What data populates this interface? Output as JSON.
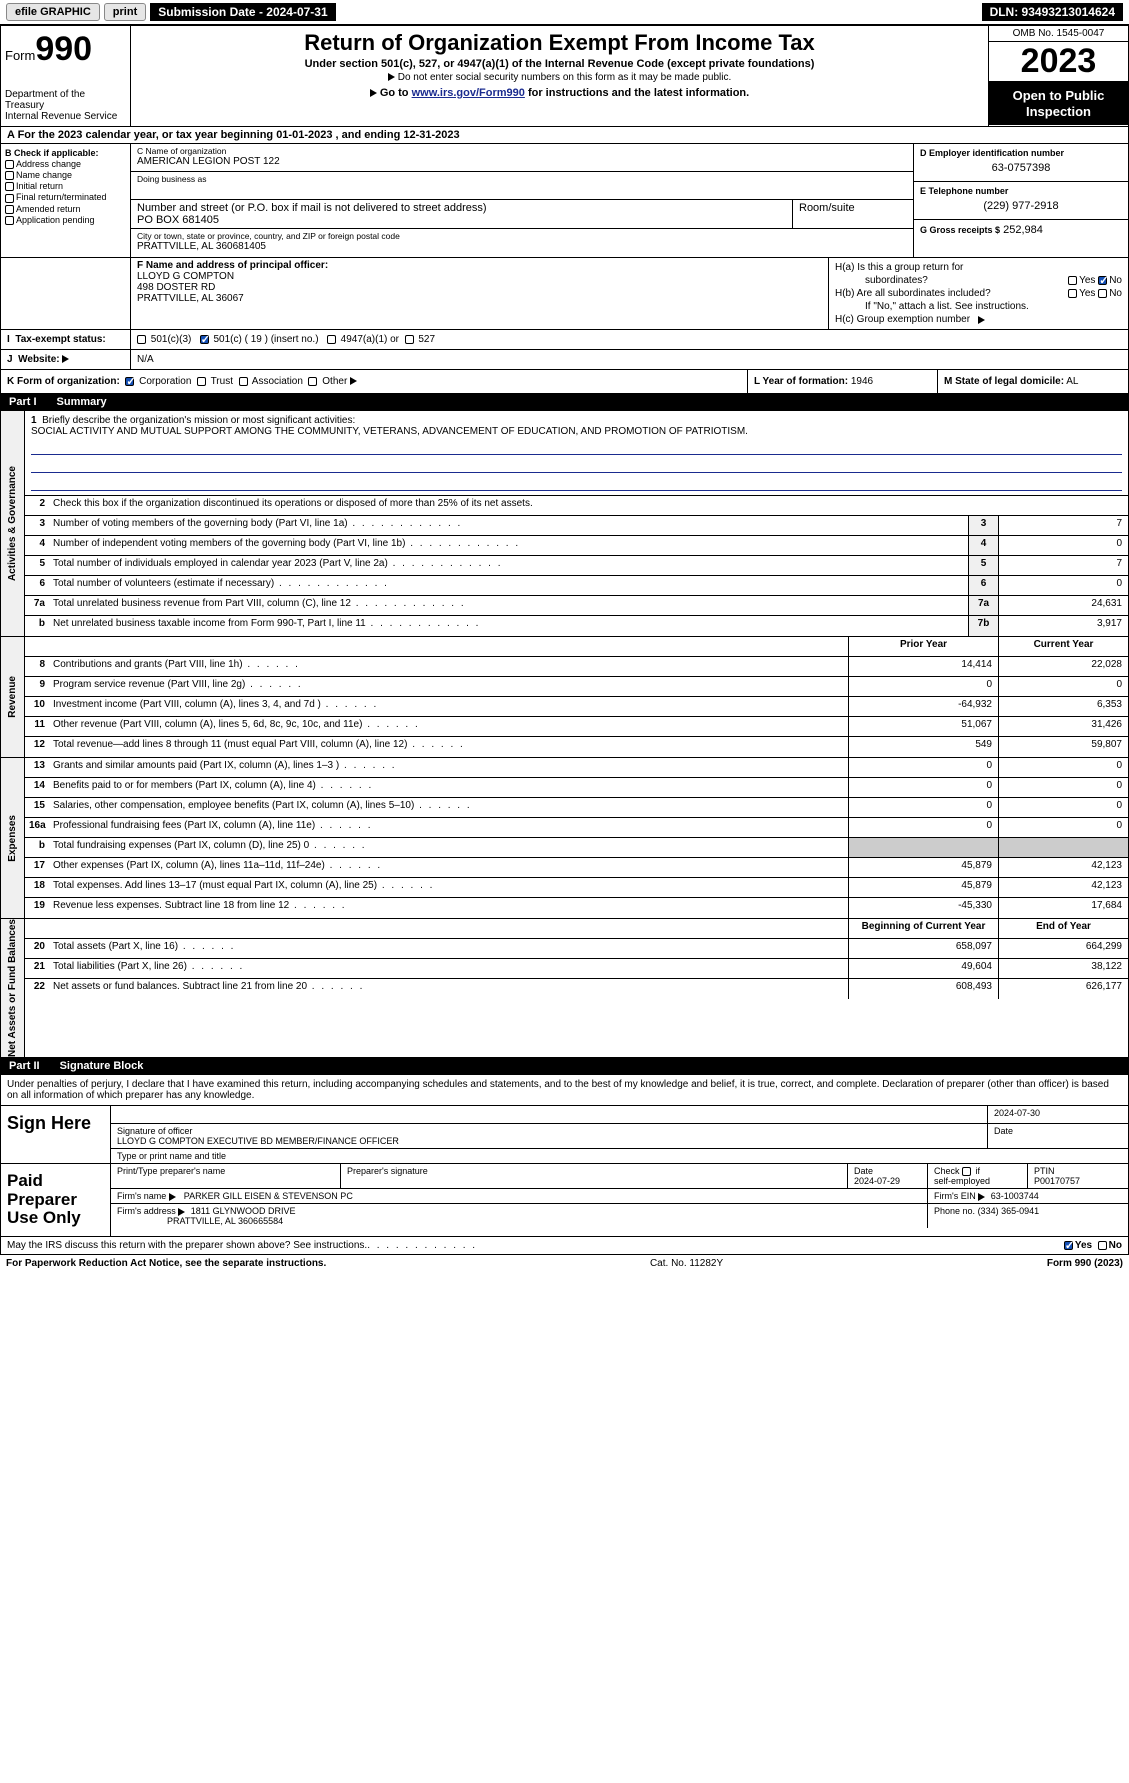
{
  "topbar": {
    "efile": "efile GRAPHIC",
    "print": "print",
    "submission": "Submission Date - 2024-07-31",
    "dln": "DLN: 93493213014624"
  },
  "header": {
    "form_label": "Form",
    "form_num": "990",
    "dept": "Department of the Treasury",
    "irs": "Internal Revenue Service",
    "title": "Return of Organization Exempt From Income Tax",
    "sub1": "Under section 501(c), 527, or 4947(a)(1) of the Internal Revenue Code (except private foundations)",
    "sub2": "Do not enter social security numbers on this form as it may be made public.",
    "goto_pre": "Go to ",
    "goto_link": "www.irs.gov/Form990",
    "goto_post": " for instructions and the latest information.",
    "omb": "OMB No. 1545-0047",
    "year": "2023",
    "open": "Open to Public Inspection"
  },
  "rowA": "A  For the 2023 calendar year, or tax year beginning 01-01-2023   , and ending 12-31-2023",
  "colB": {
    "title": "B Check if applicable:",
    "items": [
      "Address change",
      "Name change",
      "Initial return",
      "Final return/terminated",
      "Amended return",
      "Application pending"
    ]
  },
  "colC": {
    "name_lbl": "C Name of organization",
    "name": "AMERICAN LEGION POST 122",
    "dba_lbl": "Doing business as",
    "dba": "",
    "street_lbl": "Number and street (or P.O. box if mail is not delivered to street address)",
    "street": "PO BOX 681405",
    "room_lbl": "Room/suite",
    "room": "",
    "city_lbl": "City or town, state or province, country, and ZIP or foreign postal code",
    "city": "PRATTVILLE, AL  360681405"
  },
  "colD": {
    "ein_lbl": "D Employer identification number",
    "ein": "63-0757398",
    "tel_lbl": "E Telephone number",
    "tel": "(229) 977-2918",
    "gross_lbl": "G Gross receipts $",
    "gross": "252,984"
  },
  "rowF": {
    "lbl": "F Name and address of principal officer:",
    "name": "LLOYD G COMPTON",
    "addr1": "498 DOSTER RD",
    "addr2": "PRATTVILLE, AL  36067"
  },
  "rowH": {
    "a": "H(a)  Is this a group return for",
    "a2": "subordinates?",
    "b": "H(b)  Are all subordinates included?",
    "b2": "If \"No,\" attach a list. See instructions.",
    "c": "H(c)  Group exemption number",
    "yes": "Yes",
    "no": "No"
  },
  "rowI": {
    "lbl": "Tax-exempt status:",
    "opts": [
      "501(c)(3)",
      "501(c) ( 19 ) (insert no.)",
      "4947(a)(1) or",
      "527"
    ]
  },
  "rowJ": {
    "lbl": "Website:",
    "val": "N/A"
  },
  "rowK": {
    "lbl": "K Form of organization:",
    "opts": [
      "Corporation",
      "Trust",
      "Association",
      "Other"
    ]
  },
  "rowL": {
    "lbl": "L Year of formation:",
    "val": "1946"
  },
  "rowM": {
    "lbl": "M State of legal domicile:",
    "val": "AL"
  },
  "part1": {
    "pn": "Part I",
    "title": "Summary"
  },
  "mission": {
    "lbl": "Briefly describe the organization's mission or most significant activities:",
    "text": "SOCIAL ACTIVITY AND MUTUAL SUPPORT AMONG THE COMMUNITY, VETERANS, ADVANCEMENT OF EDUCATION, AND PROMOTION OF PATRIOTISM."
  },
  "vtabs": {
    "ag": "Activities & Governance",
    "rev": "Revenue",
    "exp": "Expenses",
    "na": "Net Assets or Fund Balances"
  },
  "line2": "Check this box      if the organization discontinued its operations or disposed of more than 25% of its net assets.",
  "lines_ag": [
    {
      "n": "3",
      "d": "Number of voting members of the governing body (Part VI, line 1a)",
      "b": "3",
      "v": "7"
    },
    {
      "n": "4",
      "d": "Number of independent voting members of the governing body (Part VI, line 1b)",
      "b": "4",
      "v": "0"
    },
    {
      "n": "5",
      "d": "Total number of individuals employed in calendar year 2023 (Part V, line 2a)",
      "b": "5",
      "v": "7"
    },
    {
      "n": "6",
      "d": "Total number of volunteers (estimate if necessary)",
      "b": "6",
      "v": "0"
    },
    {
      "n": "7a",
      "d": "Total unrelated business revenue from Part VIII, column (C), line 12",
      "b": "7a",
      "v": "24,631"
    },
    {
      "n": "b",
      "d": "Net unrelated business taxable income from Form 990-T, Part I, line 11",
      "b": "7b",
      "v": "3,917"
    }
  ],
  "hdr_py": "Prior Year",
  "hdr_cy": "Current Year",
  "lines_rev": [
    {
      "n": "8",
      "d": "Contributions and grants (Part VIII, line 1h)",
      "p": "14,414",
      "c": "22,028"
    },
    {
      "n": "9",
      "d": "Program service revenue (Part VIII, line 2g)",
      "p": "0",
      "c": "0"
    },
    {
      "n": "10",
      "d": "Investment income (Part VIII, column (A), lines 3, 4, and 7d )",
      "p": "-64,932",
      "c": "6,353"
    },
    {
      "n": "11",
      "d": "Other revenue (Part VIII, column (A), lines 5, 6d, 8c, 9c, 10c, and 11e)",
      "p": "51,067",
      "c": "31,426"
    },
    {
      "n": "12",
      "d": "Total revenue—add lines 8 through 11 (must equal Part VIII, column (A), line 12)",
      "p": "549",
      "c": "59,807"
    }
  ],
  "lines_exp": [
    {
      "n": "13",
      "d": "Grants and similar amounts paid (Part IX, column (A), lines 1–3 )",
      "p": "0",
      "c": "0"
    },
    {
      "n": "14",
      "d": "Benefits paid to or for members (Part IX, column (A), line 4)",
      "p": "0",
      "c": "0"
    },
    {
      "n": "15",
      "d": "Salaries, other compensation, employee benefits (Part IX, column (A), lines 5–10)",
      "p": "0",
      "c": "0"
    },
    {
      "n": "16a",
      "d": "Professional fundraising fees (Part IX, column (A), line 11e)",
      "p": "0",
      "c": "0"
    },
    {
      "n": "b",
      "d": "Total fundraising expenses (Part IX, column (D), line 25) 0",
      "p": "",
      "c": "",
      "gray": true
    },
    {
      "n": "17",
      "d": "Other expenses (Part IX, column (A), lines 11a–11d, 11f–24e)",
      "p": "45,879",
      "c": "42,123"
    },
    {
      "n": "18",
      "d": "Total expenses. Add lines 13–17 (must equal Part IX, column (A), line 25)",
      "p": "45,879",
      "c": "42,123"
    },
    {
      "n": "19",
      "d": "Revenue less expenses. Subtract line 18 from line 12",
      "p": "-45,330",
      "c": "17,684"
    }
  ],
  "hdr_boy": "Beginning of Current Year",
  "hdr_eoy": "End of Year",
  "lines_na": [
    {
      "n": "20",
      "d": "Total assets (Part X, line 16)",
      "p": "658,097",
      "c": "664,299"
    },
    {
      "n": "21",
      "d": "Total liabilities (Part X, line 26)",
      "p": "49,604",
      "c": "38,122"
    },
    {
      "n": "22",
      "d": "Net assets or fund balances. Subtract line 21 from line 20",
      "p": "608,493",
      "c": "626,177"
    }
  ],
  "part2": {
    "pn": "Part II",
    "title": "Signature Block"
  },
  "sig": {
    "decl": "Under penalties of perjury, I declare that I have examined this return, including accompanying schedules and statements, and to the best of my knowledge and belief, it is true, correct, and complete. Declaration of preparer (other than officer) is based on all information of which preparer has any knowledge.",
    "sign_here": "Sign Here",
    "sig_off": "Signature of officer",
    "date": "Date",
    "date_val": "2024-07-30",
    "name_line": "LLOYD G COMPTON  EXECUTIVE BD MEMBER/FINANCE OFFICER",
    "type_lbl": "Type or print name and title",
    "paid": "Paid Preparer Use Only",
    "prep_name_lbl": "Print/Type preparer's name",
    "prep_sig_lbl": "Preparer's signature",
    "prep_date_lbl": "Date",
    "prep_date": "2024-07-29",
    "check_lbl": "Check       if self-employed",
    "ptin_lbl": "PTIN",
    "ptin": "P00170757",
    "firm_name_lbl": "Firm's name",
    "firm_name": "PARKER GILL EISEN & STEVENSON PC",
    "firm_ein_lbl": "Firm's EIN",
    "firm_ein": "63-1003744",
    "firm_addr_lbl": "Firm's address",
    "firm_addr1": "1811 GLYNWOOD DRIVE",
    "firm_addr2": "PRATTVILLE, AL  360665584",
    "phone_lbl": "Phone no.",
    "phone": "(334) 365-0941"
  },
  "discuss": "May the IRS discuss this return with the preparer shown above? See instructions.",
  "footer": {
    "pra": "For Paperwork Reduction Act Notice, see the separate instructions.",
    "cat": "Cat. No. 11282Y",
    "form": "Form 990 (2023)"
  },
  "colors": {
    "link": "#1a2b8f",
    "gray_bg": "#f0f0f0",
    "gray_cell": "#cccccc"
  }
}
